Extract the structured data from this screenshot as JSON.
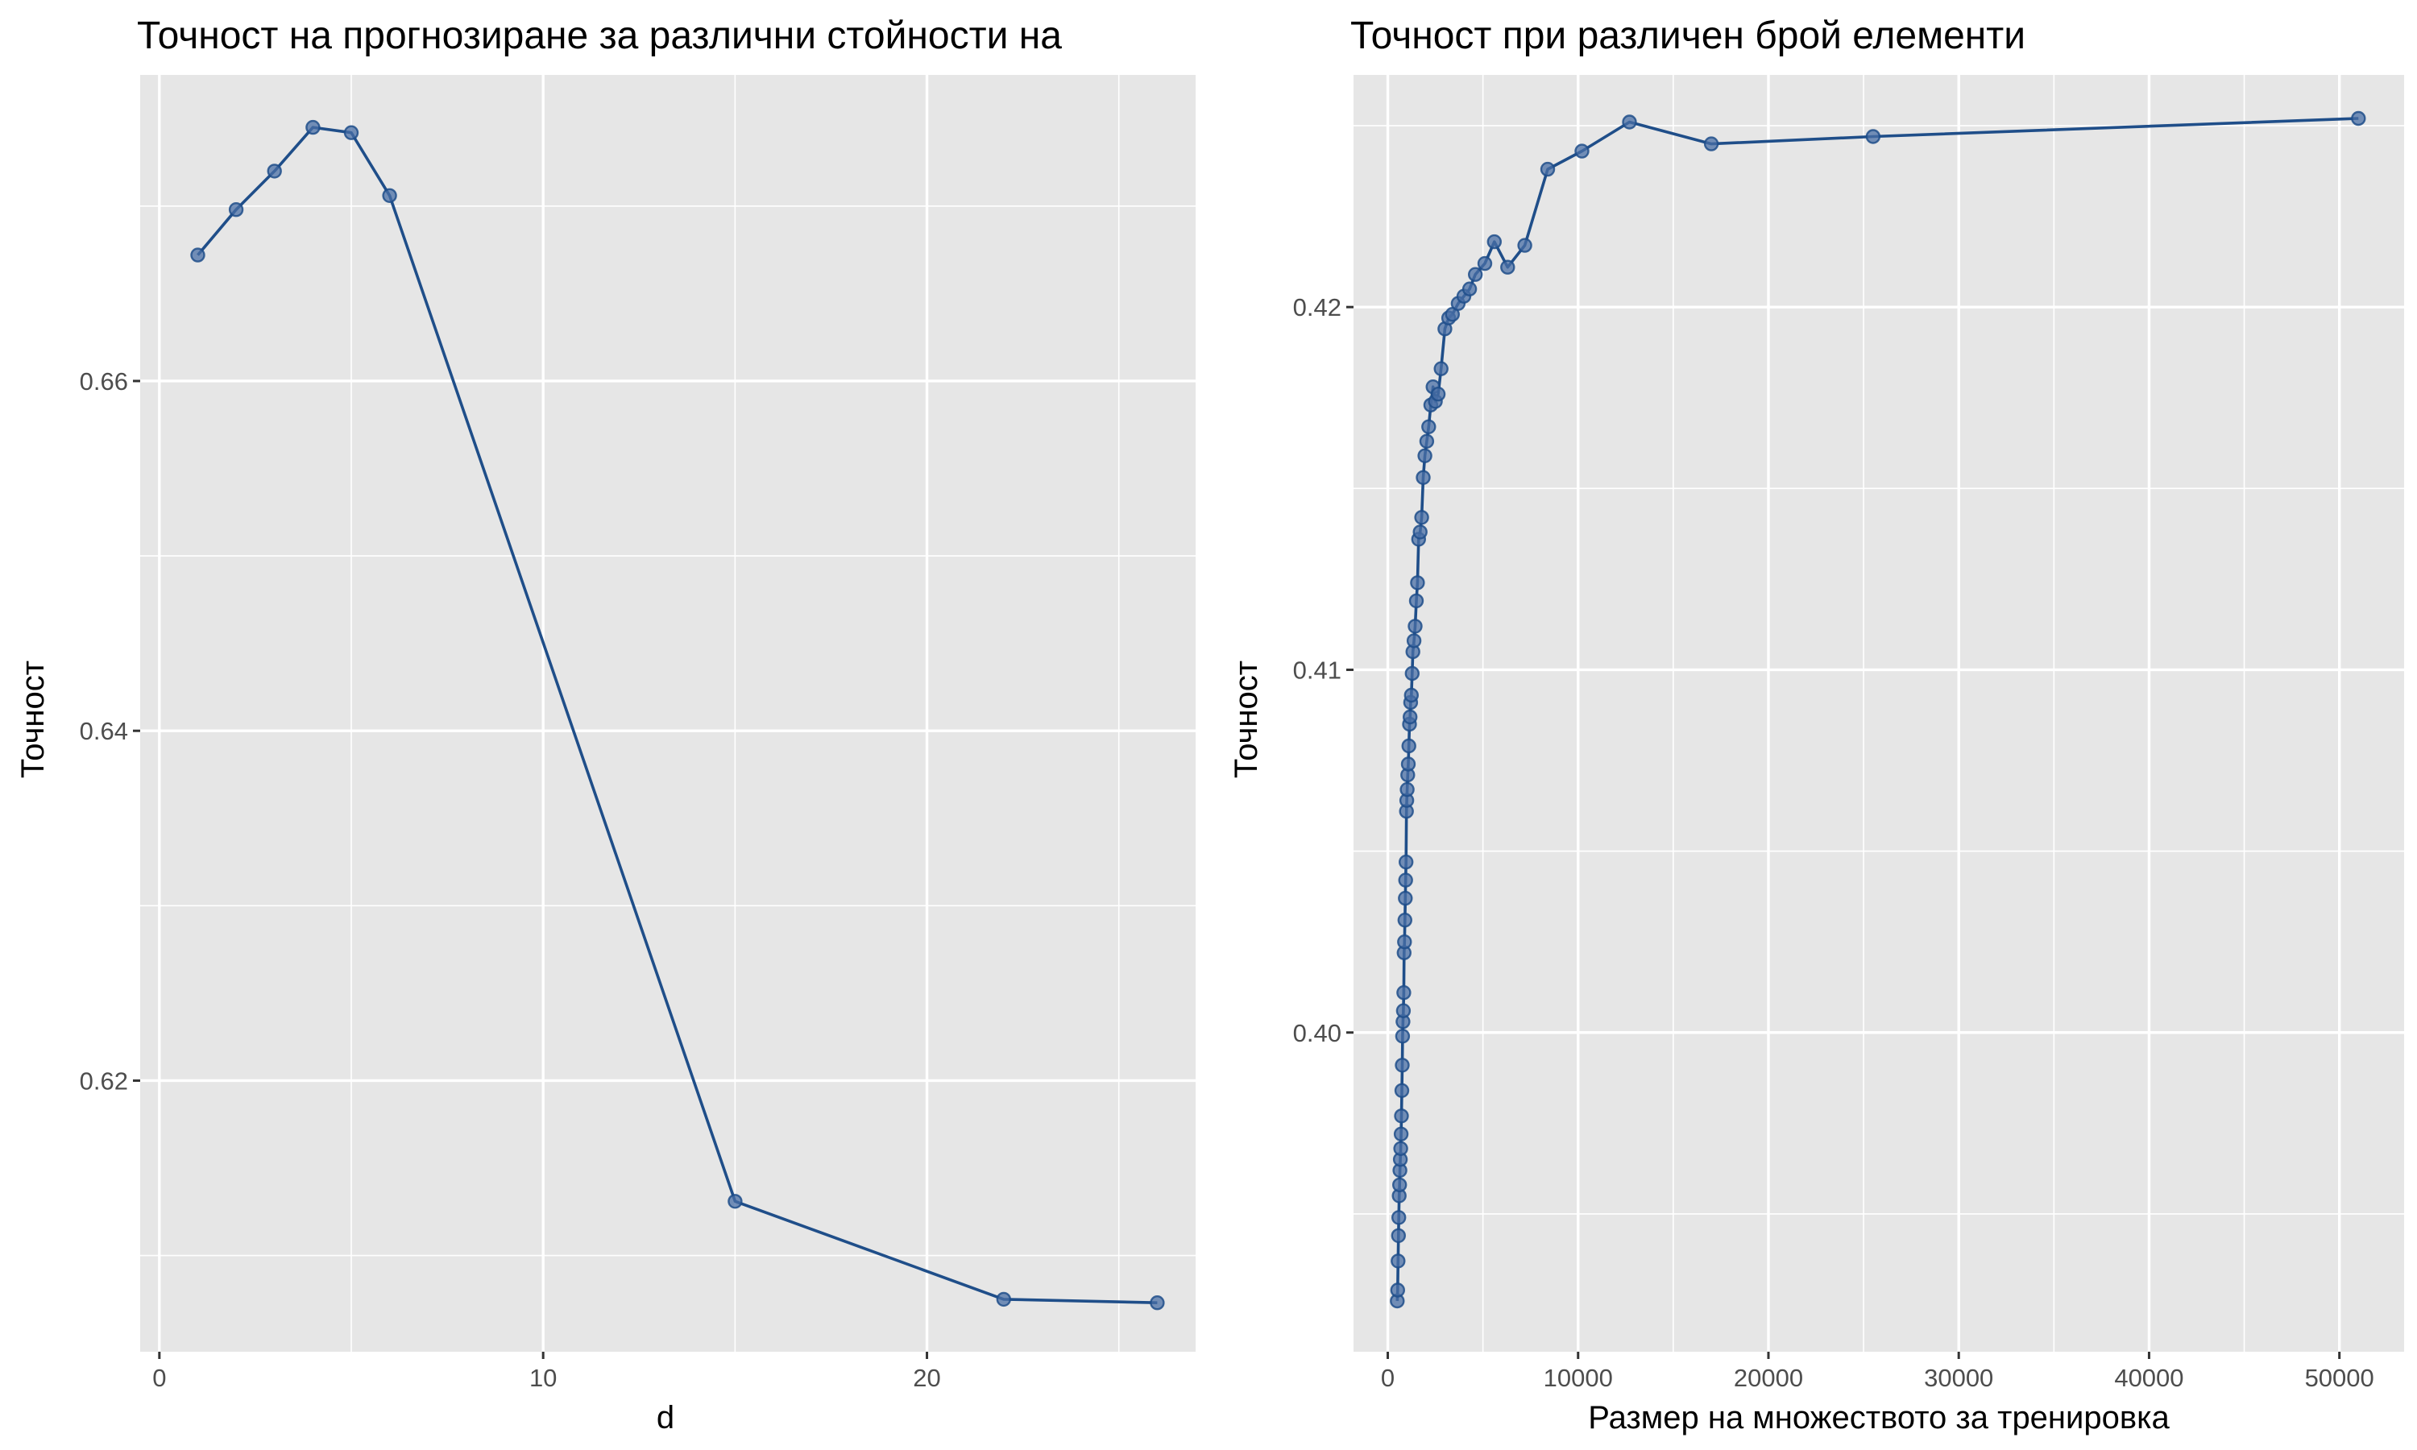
{
  "colors": {
    "series": "#1f4e89",
    "point_fill": "#4a6fa5",
    "panel_background": "#e6e6e6",
    "grid": "#ffffff"
  },
  "chart_data": [
    {
      "type": "line",
      "title": "Точност на прогнозиране за различни стойности на",
      "xlabel": "d",
      "ylabel": "Точност",
      "xlim": [
        -0.5,
        27
      ],
      "ylim": [
        0.6045,
        0.6775
      ],
      "x_major_ticks": [
        0,
        10,
        20
      ],
      "x_minor_ticks": [
        5,
        15,
        25
      ],
      "y_major_ticks": [
        0.62,
        0.64,
        0.66
      ],
      "y_minor_ticks": [
        0.61,
        0.63,
        0.65,
        0.67
      ],
      "x_tick_labels": [
        "0",
        "10",
        "20"
      ],
      "y_tick_labels": [
        "0.62",
        "0.64",
        "0.66"
      ],
      "grid": true,
      "legend": "none",
      "markers": true,
      "series": [
        {
          "x": [
            1,
            2,
            3,
            4,
            5,
            6,
            15,
            22,
            26
          ],
          "y": [
            0.6672,
            0.6698,
            0.672,
            0.6745,
            0.6742,
            0.6706,
            0.6131,
            0.6075,
            0.6073
          ]
        }
      ]
    },
    {
      "type": "line",
      "title": "Точност при различен брой елементи",
      "xlabel": "Размер на множеството за тренировка",
      "ylabel": "Точност",
      "xlim": [
        -1800,
        53400
      ],
      "ylim": [
        0.3912,
        0.4264
      ],
      "x_major_ticks": [
        0,
        10000,
        20000,
        30000,
        40000,
        50000
      ],
      "x_minor_ticks": [
        5000,
        15000,
        25000,
        35000,
        45000
      ],
      "y_major_ticks": [
        0.4,
        0.41,
        0.42
      ],
      "y_minor_ticks": [
        0.395,
        0.405,
        0.415,
        0.425
      ],
      "x_tick_labels": [
        "0",
        "10000",
        "20000",
        "30000",
        "40000",
        "50000"
      ],
      "y_tick_labels": [
        "0.40",
        "0.41",
        "0.42"
      ],
      "grid": true,
      "legend": "none",
      "markers": true,
      "series": [
        {
          "x": [
            500,
            520,
            540,
            560,
            580,
            600,
            620,
            640,
            660,
            680,
            700,
            720,
            740,
            760,
            780,
            800,
            820,
            840,
            860,
            880,
            900,
            920,
            940,
            960,
            980,
            1000,
            1020,
            1050,
            1080,
            1110,
            1140,
            1170,
            1200,
            1240,
            1280,
            1320,
            1380,
            1440,
            1500,
            1560,
            1620,
            1700,
            1780,
            1860,
            1950,
            2050,
            2150,
            2260,
            2380,
            2500,
            2650,
            2800,
            3000,
            3200,
            3400,
            3700,
            4000,
            4300,
            4600,
            5100,
            5600,
            6300,
            7200,
            8400,
            10200,
            12700,
            17000,
            25500,
            51000
          ],
          "y": [
            0.3926,
            0.3929,
            0.3937,
            0.3944,
            0.3949,
            0.3955,
            0.3958,
            0.3962,
            0.3965,
            0.3968,
            0.3972,
            0.3977,
            0.3984,
            0.3991,
            0.3999,
            0.4003,
            0.4006,
            0.4011,
            0.4022,
            0.4025,
            0.4031,
            0.4037,
            0.4042,
            0.4047,
            0.4061,
            0.4064,
            0.4067,
            0.4071,
            0.4074,
            0.4079,
            0.4085,
            0.4087,
            0.4091,
            0.4093,
            0.4099,
            0.4105,
            0.4108,
            0.4112,
            0.4119,
            0.4124,
            0.4136,
            0.4138,
            0.4142,
            0.4153,
            0.4159,
            0.4163,
            0.4167,
            0.4173,
            0.4178,
            0.4174,
            0.4176,
            0.4183,
            0.4194,
            0.4197,
            0.4198,
            0.4201,
            0.4203,
            0.4205,
            0.4209,
            0.4212,
            0.4218,
            0.4211,
            0.4217,
            0.4238,
            0.4243,
            0.4251,
            0.4245,
            0.4247,
            0.4252
          ]
        }
      ]
    }
  ]
}
